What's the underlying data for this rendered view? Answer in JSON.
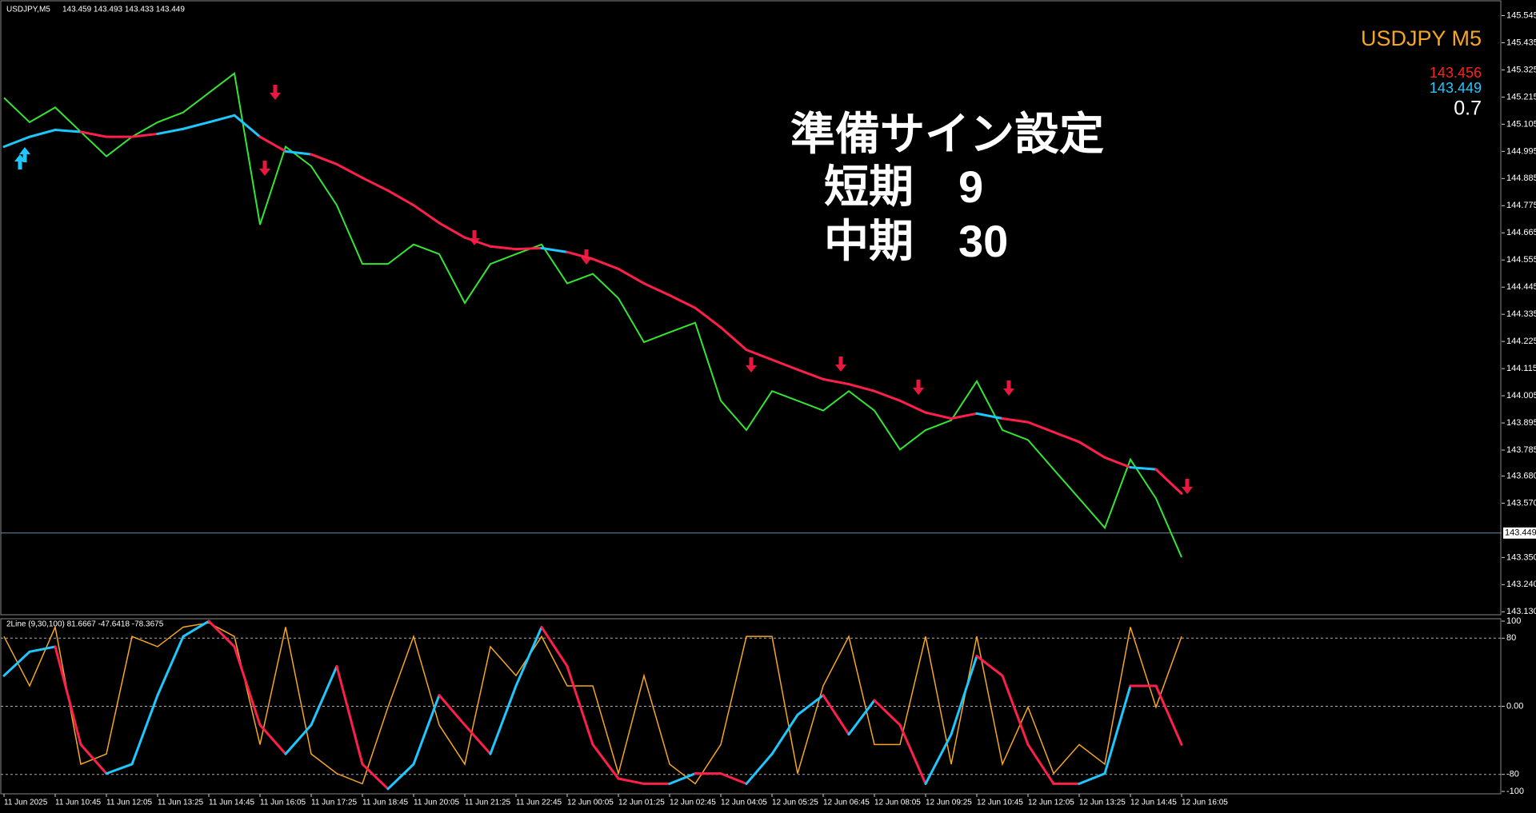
{
  "chart_data": [
    {
      "type": "line",
      "title": "USDJPY,M5",
      "subtitle": "143.459 143.493 143.433 143.449",
      "ylim": [
        143.118,
        145.592
      ],
      "yticks": [
        145.545,
        145.435,
        145.325,
        145.215,
        145.105,
        144.995,
        144.885,
        144.775,
        144.665,
        144.555,
        144.445,
        144.335,
        144.225,
        144.115,
        144.005,
        143.895,
        143.785,
        {
          "value": 143.68,
          "label": "143.680"
        },
        {
          "value": 143.57,
          "label": "143.570"
        },
        {
          "value": 143.35,
          "label": "143.350"
        },
        {
          "value": 143.24,
          "label": "143.240"
        },
        {
          "value": 143.13,
          "label": "143.130"
        }
      ],
      "current_price": 143.449,
      "series": [
        {
          "color": "#33e633",
          "values": [
            145.212,
            145.113,
            145.173,
            145.074,
            144.975,
            145.054,
            145.113,
            145.153,
            145.232,
            145.311,
            144.698,
            145.014,
            144.935,
            144.777,
            144.539,
            144.539,
            144.618,
            144.579,
            144.381,
            144.539,
            144.579,
            144.618,
            144.46,
            144.499,
            144.4,
            144.222,
            144.262,
            144.301,
            143.985,
            143.866,
            144.024,
            143.985,
            143.945,
            144.024,
            143.945,
            143.787,
            143.866,
            143.906,
            144.064,
            143.866,
            143.826,
            143.707,
            143.589,
            143.47,
            143.747,
            143.589,
            143.351
          ]
        },
        {
          "color": "#ff1f4b",
          "color_above": "#1ec8ff",
          "values": [
            145.014,
            145.054,
            145.082,
            145.074,
            145.054,
            145.054,
            145.066,
            145.086,
            145.113,
            145.141,
            145.054,
            144.995,
            144.983,
            144.943,
            144.888,
            144.836,
            144.777,
            144.705,
            144.646,
            144.61,
            144.599,
            144.603,
            144.587,
            144.559,
            144.519,
            144.46,
            144.412,
            144.361,
            144.282,
            144.191,
            144.151,
            144.111,
            144.072,
            144.052,
            144.024,
            143.985,
            143.937,
            143.913,
            143.933,
            143.913,
            143.898,
            143.858,
            143.818,
            143.755,
            143.715,
            143.707,
            143.609
          ]
        }
      ],
      "annotations": [
        "USDJPY M5",
        "143.456",
        "143.449",
        "0.7",
        "準備サイン設定",
        "短期　9",
        "中期　30"
      ]
    },
    {
      "type": "line",
      "title": "2Line (9,30,100) 81.6667 -47.6418 -78.3675",
      "categories": [
        "11 Jun 2025",
        null,
        "11 Jun 10:45",
        null,
        "11 Jun 12:05",
        null,
        "11 Jun 13:25",
        null,
        "11 Jun 14:45",
        null,
        "11 Jun 16:05",
        null,
        "11 Jun 17:25",
        null,
        "11 Jun 18:45",
        null,
        "11 Jun 20:05",
        null,
        "11 Jun 21:25",
        null,
        "11 Jun 22:45",
        null,
        "12 Jun 00:05",
        null,
        "12 Jun 01:25",
        null,
        "12 Jun 02:45",
        null,
        "12 Jun 04:05",
        null,
        "12 Jun 05:25",
        null,
        "12 Jun 06:45",
        null,
        "12 Jun 08:05",
        null,
        "12 Jun 09:25",
        null,
        "12 Jun 10:45",
        null,
        "12 Jun 12:05",
        null,
        "12 Jun 13:25",
        null,
        "12 Jun 14:45",
        null,
        "12 Jun 16:05"
      ],
      "ylim": [
        -100,
        100
      ],
      "yticks": [
        100,
        80,
        {
          "value": 0,
          "label": "0.00"
        },
        -80,
        -100
      ],
      "levels": [
        80,
        0,
        -80
      ],
      "series": [
        {
          "color": "#f5a623",
          "values": [
            82,
            24,
            93,
            -68,
            -56,
            82,
            70,
            93,
            98,
            82,
            -45,
            93,
            -56,
            -79,
            -91,
            -1,
            82,
            -22,
            -68,
            70,
            36,
            82,
            24,
            24,
            -79,
            36,
            -68,
            -91,
            -45,
            82,
            82,
            -79,
            24,
            82,
            -45,
            -45,
            82,
            -68,
            82,
            -68,
            -1,
            -79,
            -45,
            -68,
            93,
            -1,
            82
          ]
        },
        {
          "color": "#ff1f4b",
          "color_rising": "#1ec8ff",
          "values": [
            36,
            64,
            70,
            -45,
            -79,
            -68,
            13,
            82,
            100,
            70,
            -22,
            -56,
            -22,
            47,
            -68,
            -97,
            -68,
            13,
            -22,
            -56,
            24,
            93,
            47,
            -45,
            -85,
            -91,
            -91,
            -79,
            -79,
            -91,
            -56,
            -10,
            13,
            -33,
            7,
            -22,
            -91,
            -33,
            59,
            36,
            -45,
            -91,
            -91,
            -79,
            24,
            24,
            -45
          ]
        }
      ]
    }
  ]
}
